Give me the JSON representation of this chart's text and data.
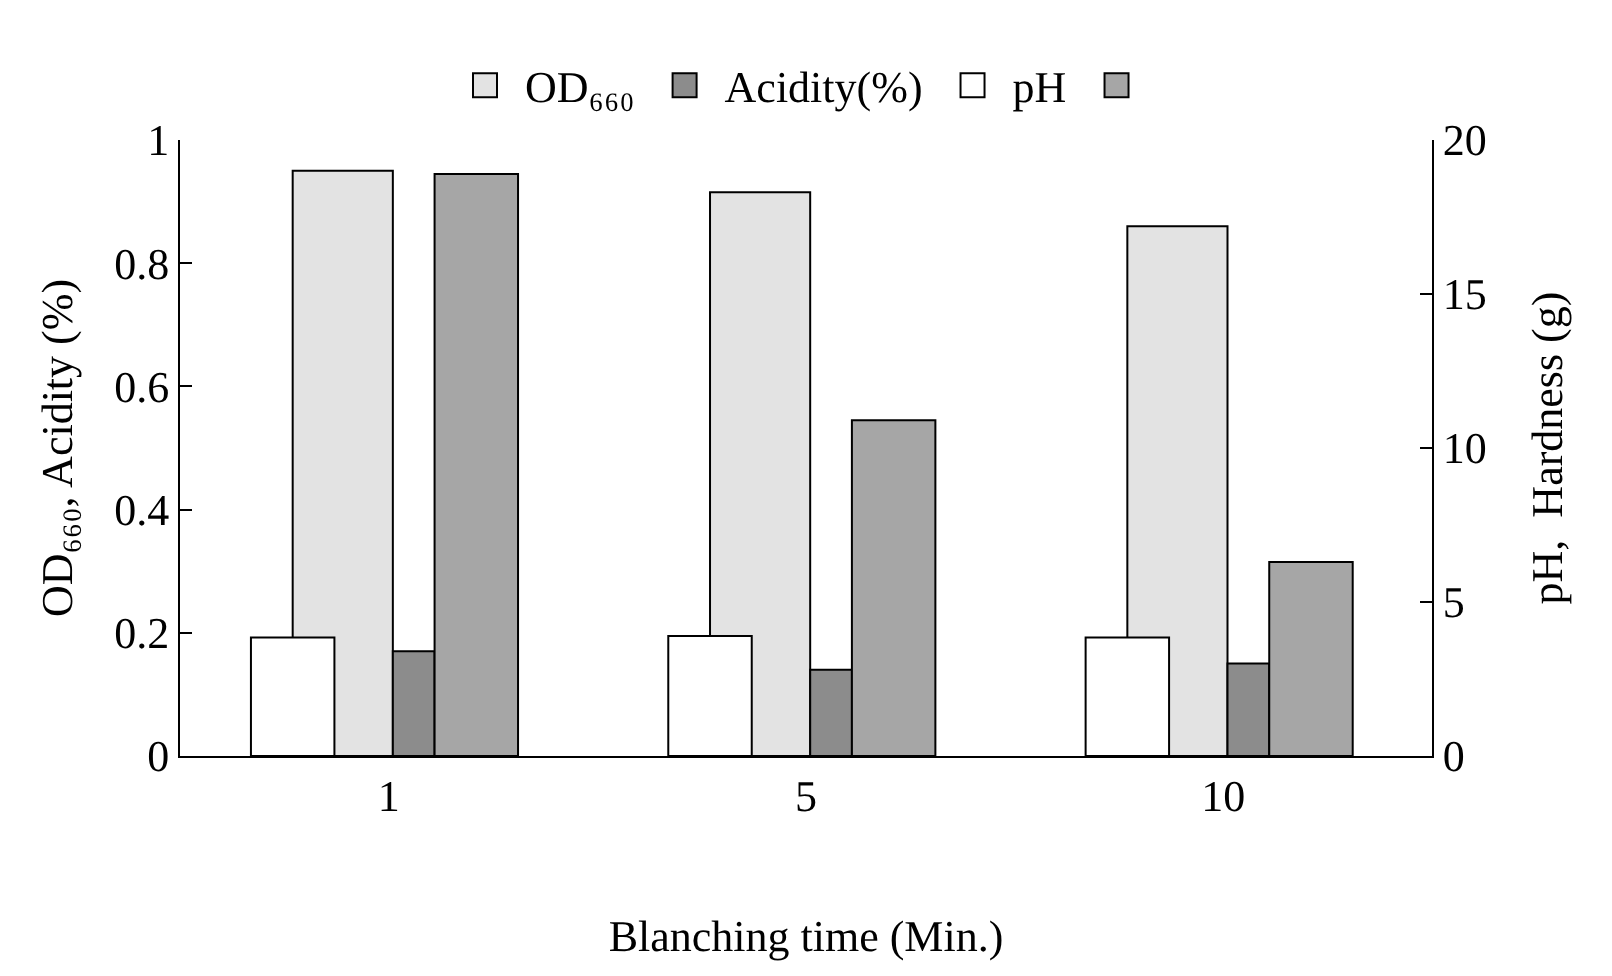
{
  "chart_data": {
    "type": "bar",
    "xlabel": "Blanching time (Min.)",
    "ylabel": "OD₆₆₀, Acidity (%)",
    "y2label": "pH,  Hardness (g)",
    "categories": [
      "1",
      "5",
      "10"
    ],
    "series": [
      {
        "name": "OD₆₆₀",
        "color": "#e3e3e3",
        "values": [
          0.95,
          0.915,
          0.86
        ]
      },
      {
        "name": "Acidity(%)",
        "color": "#8c8c8c",
        "values": [
          0.17,
          0.14,
          0.15
        ]
      },
      {
        "name": "pH",
        "color": "#ffffff",
        "axis": "y2",
        "values": [
          3.85,
          3.9,
          3.85
        ]
      },
      {
        "color": "#a6a6a6",
        "axis": "y2",
        "values": [
          18.9,
          10.9,
          6.3
        ]
      }
    ],
    "ylim": [
      0,
      1
    ],
    "yticks": [
      {
        "value": 0,
        "label": "0"
      },
      0.2,
      0.4,
      0.6,
      0.8,
      1
    ],
    "y2lim": [
      0,
      20
    ],
    "y2ticks": [
      0,
      5,
      10,
      15,
      20
    ],
    "grid": false,
    "legend": "top"
  }
}
